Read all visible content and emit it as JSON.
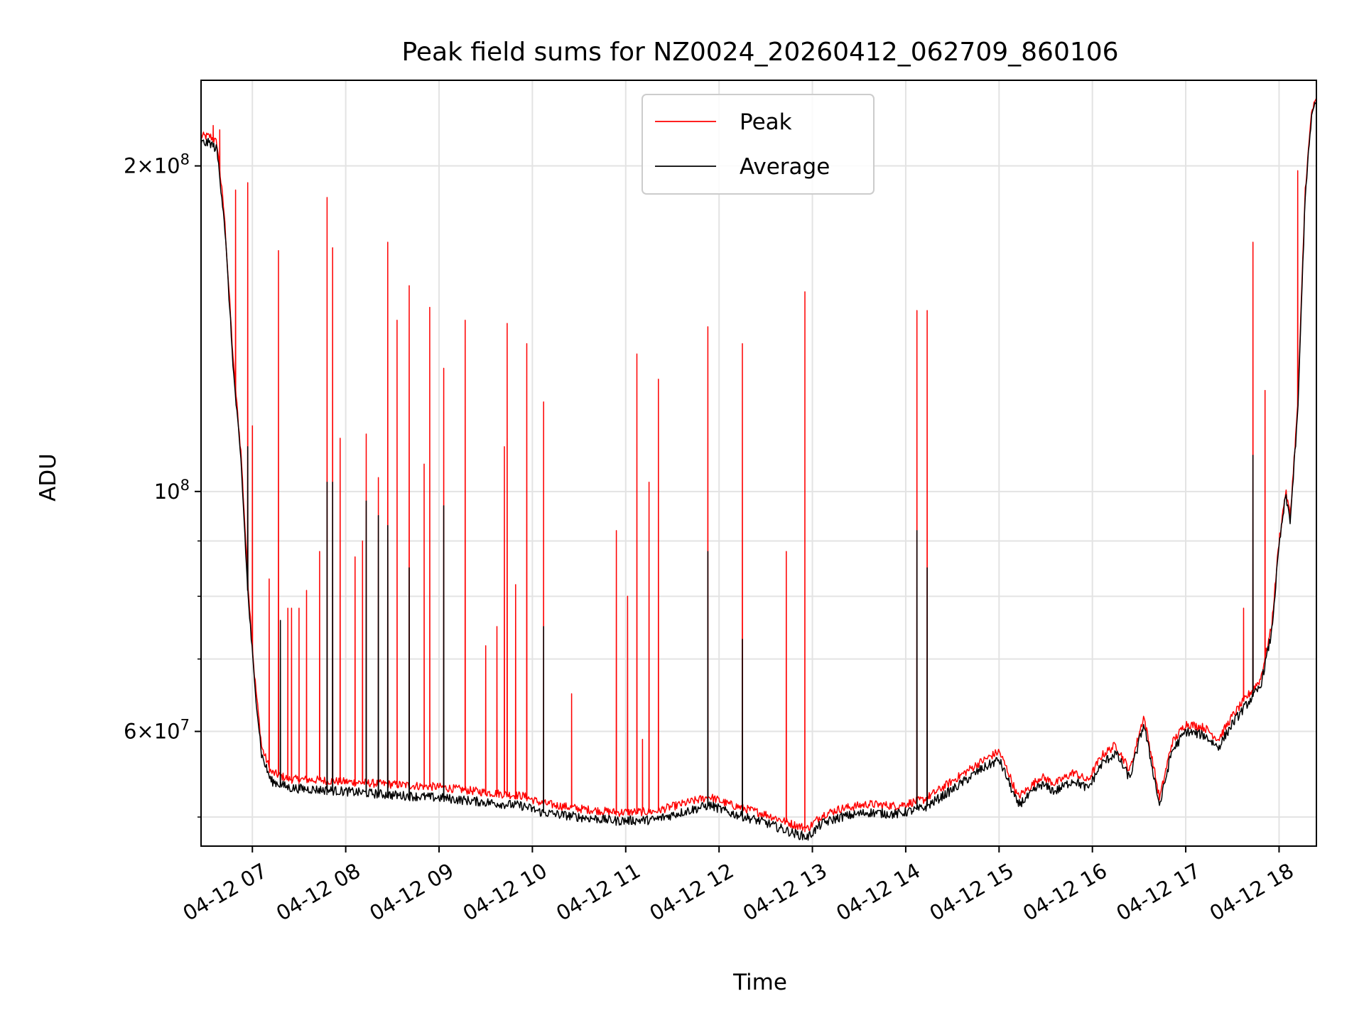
{
  "chart_data": {
    "type": "line",
    "title": "Peak field sums for NZ0024_20260412_062709_860106",
    "xlabel": "Time",
    "ylabel": "ADU",
    "yscale": "log",
    "grid": true,
    "legend_position": "top-center",
    "xlim": [
      6.45,
      18.4
    ],
    "ylim": [
      47000000,
      240000000
    ],
    "x_ticks": [
      7,
      8,
      9,
      10,
      11,
      12,
      13,
      14,
      15,
      16,
      17,
      18
    ],
    "x_tick_labels": [
      "04-12 07",
      "04-12 08",
      "04-12 09",
      "04-12 10",
      "04-12 11",
      "04-12 12",
      "04-12 13",
      "04-12 14",
      "04-12 15",
      "04-12 16",
      "04-12 17",
      "04-12 18"
    ],
    "y_major_ticks": [
      {
        "value": 200000000,
        "mant": "2",
        "base": "×10",
        "exp": "8"
      },
      {
        "value": 100000000,
        "mant": "",
        "base": "10",
        "exp": "8"
      },
      {
        "value": 60000000,
        "mant": "6",
        "base": "×10",
        "exp": "7"
      }
    ],
    "y_minor_ticks": [
      50000000,
      70000000,
      80000000,
      90000000
    ],
    "series": [
      {
        "name": "Peak",
        "color": "#ff0000",
        "baseline": [
          [
            6.45,
            213000000
          ],
          [
            6.55,
            213000000
          ],
          [
            6.62,
            210000000
          ],
          [
            6.7,
            180000000
          ],
          [
            6.8,
            130000000
          ],
          [
            6.88,
            108000000
          ],
          [
            6.95,
            83000000
          ],
          [
            7.02,
            68000000
          ],
          [
            7.1,
            58000000
          ],
          [
            7.2,
            55000000
          ],
          [
            7.4,
            54200000
          ],
          [
            7.7,
            54100000
          ],
          [
            8.0,
            53900000
          ],
          [
            8.5,
            53600000
          ],
          [
            9.0,
            53300000
          ],
          [
            9.5,
            52700000
          ],
          [
            9.9,
            52300000
          ],
          [
            10.1,
            51500000
          ],
          [
            10.5,
            50900000
          ],
          [
            10.9,
            50500000
          ],
          [
            11.3,
            50600000
          ],
          [
            11.6,
            51400000
          ],
          [
            11.9,
            52200000
          ],
          [
            12.1,
            51400000
          ],
          [
            12.5,
            50300000
          ],
          [
            12.8,
            49200000
          ],
          [
            12.95,
            48800000
          ],
          [
            13.1,
            50200000
          ],
          [
            13.3,
            50900000
          ],
          [
            13.6,
            51400000
          ],
          [
            13.9,
            51200000
          ],
          [
            14.2,
            51900000
          ],
          [
            14.5,
            54000000
          ],
          [
            14.8,
            56200000
          ],
          [
            15.0,
            57500000
          ],
          [
            15.1,
            55000000
          ],
          [
            15.2,
            52200000
          ],
          [
            15.3,
            53000000
          ],
          [
            15.45,
            54500000
          ],
          [
            15.6,
            53700000
          ],
          [
            15.8,
            55000000
          ],
          [
            15.95,
            54000000
          ],
          [
            16.1,
            57000000
          ],
          [
            16.25,
            58300000
          ],
          [
            16.4,
            55200000
          ],
          [
            16.55,
            62000000
          ],
          [
            16.65,
            56000000
          ],
          [
            16.72,
            52000000
          ],
          [
            16.85,
            58500000
          ],
          [
            17.0,
            61000000
          ],
          [
            17.2,
            60500000
          ],
          [
            17.35,
            59000000
          ],
          [
            17.5,
            62000000
          ],
          [
            17.65,
            64500000
          ],
          [
            17.8,
            67000000
          ],
          [
            17.92,
            75000000
          ],
          [
            18.0,
            90000000
          ],
          [
            18.07,
            100000000
          ],
          [
            18.12,
            95000000
          ],
          [
            18.2,
            120000000
          ],
          [
            18.28,
            190000000
          ],
          [
            18.35,
            225000000
          ],
          [
            18.4,
            230000000
          ]
        ],
        "spikes": [
          [
            6.58,
            218000000
          ],
          [
            6.65,
            216000000
          ],
          [
            6.82,
            190000000
          ],
          [
            6.95,
            193000000
          ],
          [
            7.0,
            115000000
          ],
          [
            7.18,
            83000000
          ],
          [
            7.28,
            167000000
          ],
          [
            7.38,
            78000000
          ],
          [
            7.42,
            78000000
          ],
          [
            7.5,
            78000000
          ],
          [
            7.58,
            81000000
          ],
          [
            7.72,
            88000000
          ],
          [
            7.8,
            187000000
          ],
          [
            7.86,
            168000000
          ],
          [
            7.94,
            112000000
          ],
          [
            8.1,
            87000000
          ],
          [
            8.18,
            90000000
          ],
          [
            8.22,
            113000000
          ],
          [
            8.35,
            103000000
          ],
          [
            8.45,
            170000000
          ],
          [
            8.55,
            144000000
          ],
          [
            8.68,
            155000000
          ],
          [
            8.84,
            106000000
          ],
          [
            8.9,
            148000000
          ],
          [
            9.05,
            130000000
          ],
          [
            9.28,
            144000000
          ],
          [
            9.5,
            72000000
          ],
          [
            9.62,
            75000000
          ],
          [
            9.7,
            110000000
          ],
          [
            9.73,
            143000000
          ],
          [
            9.82,
            82000000
          ],
          [
            9.94,
            137000000
          ],
          [
            10.12,
            121000000
          ],
          [
            10.42,
            65000000
          ],
          [
            10.9,
            92000000
          ],
          [
            11.02,
            80000000
          ],
          [
            11.12,
            134000000
          ],
          [
            11.18,
            59000000
          ],
          [
            11.25,
            102000000
          ],
          [
            11.35,
            127000000
          ],
          [
            11.88,
            142000000
          ],
          [
            12.25,
            137000000
          ],
          [
            12.72,
            88000000
          ],
          [
            12.92,
            153000000
          ],
          [
            14.12,
            147000000
          ],
          [
            14.23,
            147000000
          ],
          [
            17.62,
            78000000
          ],
          [
            17.72,
            170000000
          ],
          [
            17.85,
            124000000
          ],
          [
            18.2,
            198000000
          ]
        ]
      },
      {
        "name": "Average",
        "color": "#000000",
        "baseline": [
          [
            6.45,
            210000000
          ],
          [
            6.55,
            210000000
          ],
          [
            6.62,
            207000000
          ],
          [
            6.7,
            178000000
          ],
          [
            6.8,
            128000000
          ],
          [
            6.88,
            106000000
          ],
          [
            6.95,
            81000000
          ],
          [
            7.02,
            67000000
          ],
          [
            7.1,
            57000000
          ],
          [
            7.2,
            54000000
          ],
          [
            7.4,
            53200000
          ],
          [
            7.7,
            53000000
          ],
          [
            8.0,
            52800000
          ],
          [
            8.5,
            52400000
          ],
          [
            9.0,
            52100000
          ],
          [
            9.5,
            51600000
          ],
          [
            9.9,
            51200000
          ],
          [
            10.1,
            50500000
          ],
          [
            10.5,
            50000000
          ],
          [
            10.9,
            49600000
          ],
          [
            11.3,
            49700000
          ],
          [
            11.6,
            50500000
          ],
          [
            11.9,
            51300000
          ],
          [
            12.1,
            50500000
          ],
          [
            12.5,
            49400000
          ],
          [
            12.8,
            48300000
          ],
          [
            12.95,
            47900000
          ],
          [
            13.1,
            49300000
          ],
          [
            13.3,
            50000000
          ],
          [
            13.6,
            50500000
          ],
          [
            13.9,
            50300000
          ],
          [
            14.2,
            51000000
          ],
          [
            14.5,
            53000000
          ],
          [
            14.8,
            55300000
          ],
          [
            15.0,
            56500000
          ],
          [
            15.1,
            54000000
          ],
          [
            15.2,
            51300000
          ],
          [
            15.3,
            52100000
          ],
          [
            15.45,
            53600000
          ],
          [
            15.6,
            52800000
          ],
          [
            15.8,
            54100000
          ],
          [
            15.95,
            53100000
          ],
          [
            16.1,
            56000000
          ],
          [
            16.25,
            57300000
          ],
          [
            16.4,
            54300000
          ],
          [
            16.55,
            61000000
          ],
          [
            16.65,
            55100000
          ],
          [
            16.72,
            51200000
          ],
          [
            16.85,
            57500000
          ],
          [
            17.0,
            60000000
          ],
          [
            17.2,
            59500000
          ],
          [
            17.35,
            58000000
          ],
          [
            17.5,
            61000000
          ],
          [
            17.65,
            63500000
          ],
          [
            17.8,
            66000000
          ],
          [
            17.92,
            74000000
          ],
          [
            18.0,
            89000000
          ],
          [
            18.07,
            99000000
          ],
          [
            18.12,
            94000000
          ],
          [
            18.2,
            118000000
          ],
          [
            18.28,
            188000000
          ],
          [
            18.35,
            223000000
          ],
          [
            18.4,
            229000000
          ]
        ],
        "spikes": [
          [
            6.95,
            110000000
          ],
          [
            7.3,
            76000000
          ],
          [
            7.8,
            102000000
          ],
          [
            7.86,
            102000000
          ],
          [
            8.22,
            98000000
          ],
          [
            8.35,
            95000000
          ],
          [
            8.45,
            93000000
          ],
          [
            8.68,
            85000000
          ],
          [
            9.05,
            97000000
          ],
          [
            10.12,
            75000000
          ],
          [
            11.88,
            88000000
          ],
          [
            12.25,
            73000000
          ],
          [
            14.12,
            92000000
          ],
          [
            14.23,
            85000000
          ],
          [
            17.72,
            108000000
          ]
        ]
      }
    ]
  }
}
